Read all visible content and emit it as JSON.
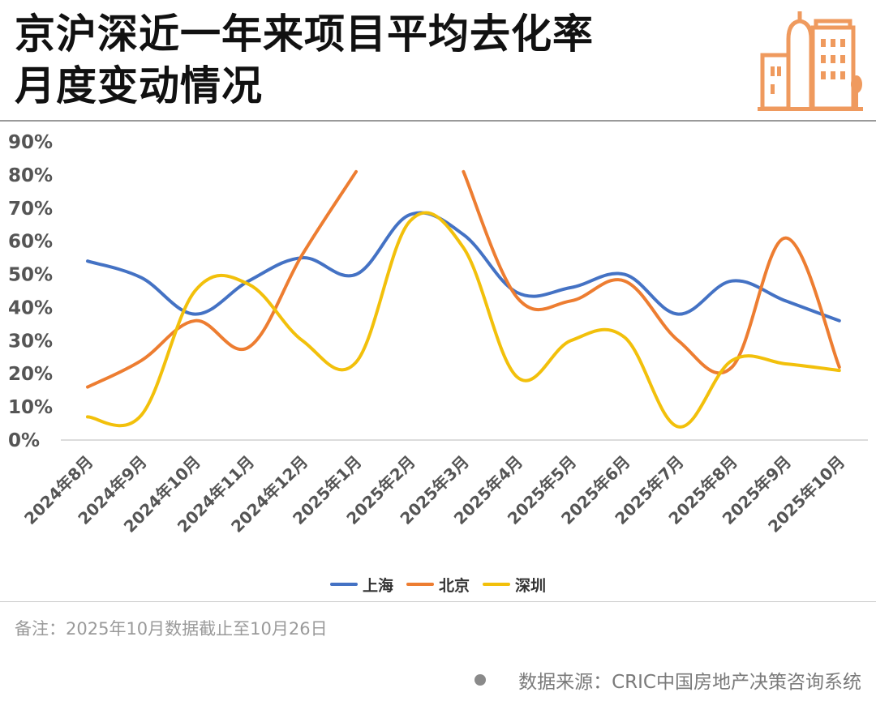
{
  "header": {
    "title_line1": "京沪深近一年来项目平均去化率",
    "title_line2": "月度变动情况"
  },
  "logo": {
    "icon": "city-buildings-icon",
    "color": "#ef9a5e"
  },
  "chart_data": {
    "type": "line",
    "categories": [
      "2024年8月",
      "2024年9月",
      "2024年10月",
      "2024年11月",
      "2024年12月",
      "2025年1月",
      "2025年2月",
      "2025年3月",
      "2025年4月",
      "2025年5月",
      "2025年6月",
      "2025年7月",
      "2025年8月",
      "2025年9月",
      "2025年10月"
    ],
    "y_ticks": [
      "0%",
      "10%",
      "20%",
      "30%",
      "40%",
      "50%",
      "60%",
      "70%",
      "80%",
      "90%"
    ],
    "ylim": [
      0,
      90
    ],
    "y_unit": "%",
    "grid": false,
    "legend_position": "bottom",
    "series": [
      {
        "name": "上海",
        "color": "#4472c4",
        "values": [
          54,
          49,
          38,
          48,
          55,
          50,
          68,
          62,
          44.5,
          46,
          50,
          38,
          48,
          42,
          36
        ]
      },
      {
        "name": "北京",
        "color": "#ed7d31",
        "values": [
          16,
          24,
          36,
          28,
          56,
          81,
          null,
          81,
          43,
          42,
          48,
          30,
          22,
          61,
          22
        ]
      },
      {
        "name": "深圳",
        "color": "#f2c00b",
        "values": [
          7,
          7.5,
          45,
          47,
          30,
          23.5,
          66,
          58,
          19,
          30,
          31,
          4,
          24,
          23,
          21
        ]
      }
    ]
  },
  "footer": {
    "note": "备注：2025年10月数据截止至10月26日",
    "source": "数据来源：CRIC中国房地产决策咨询系统"
  }
}
